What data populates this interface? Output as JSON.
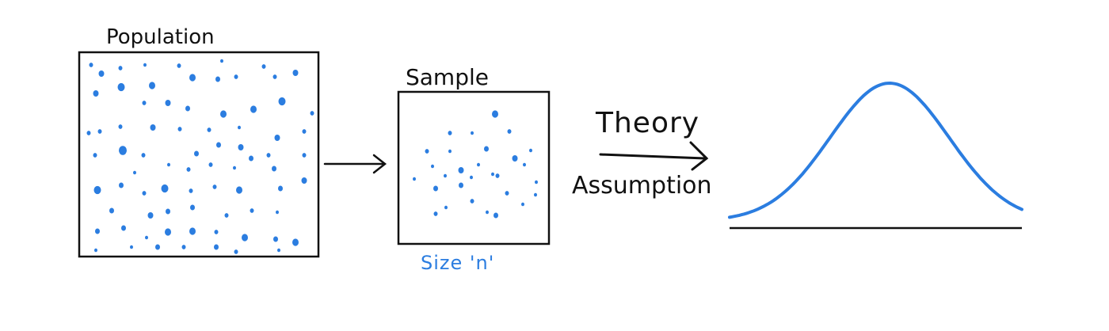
{
  "labels": {
    "population": "Population",
    "sample": "Sample",
    "sample_size": "Size 'n'",
    "theory": "Theory",
    "assumption": "Assumption"
  },
  "colors": {
    "ink": "#111111",
    "dot": "#2b7de0",
    "curve": "#2b7de0"
  }
}
